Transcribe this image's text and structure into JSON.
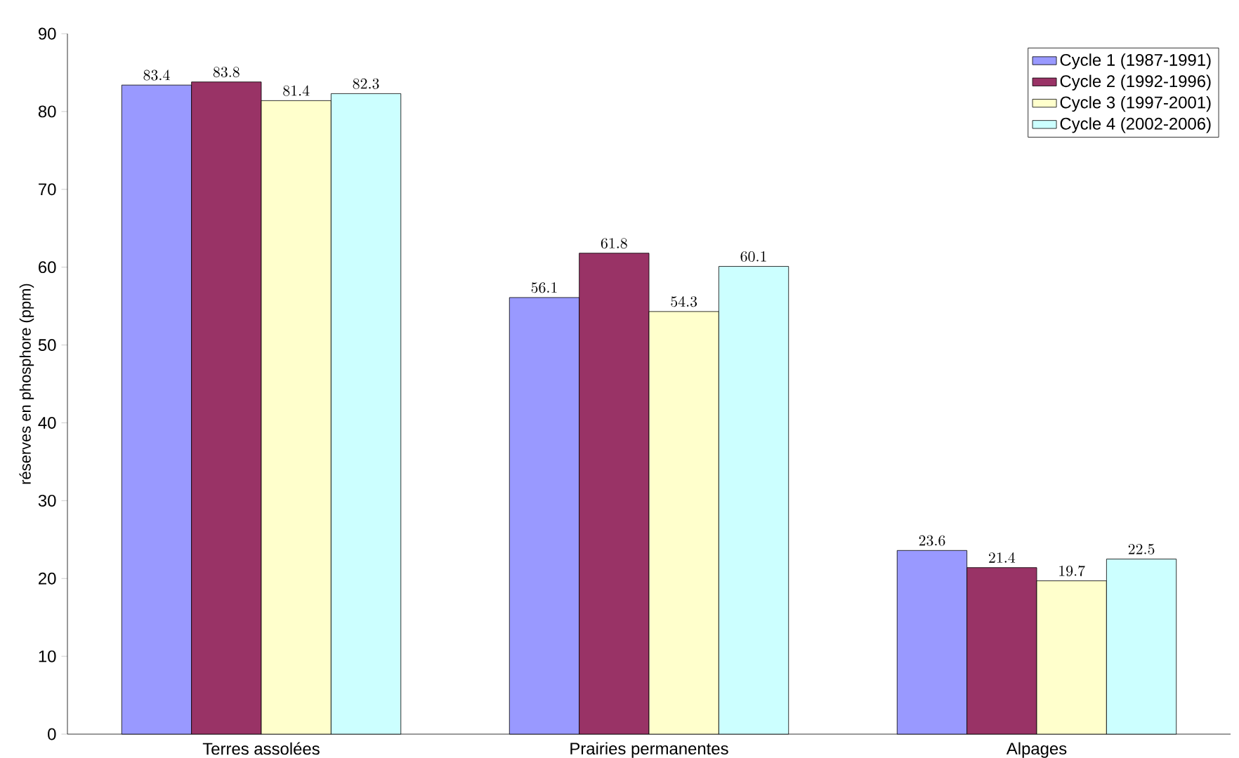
{
  "chart_data": {
    "type": "bar",
    "ylabel": "réserves en phosphore (ppm)",
    "categories": [
      "Terres assolées",
      "Prairies permanentes",
      "Alpages"
    ],
    "series": [
      {
        "name": "Cycle 1 (1987-1991)",
        "color": "#9999ff",
        "values": [
          83.4,
          56.1,
          23.6
        ]
      },
      {
        "name": "Cycle 2 (1992-1996)",
        "color": "#993366",
        "values": [
          83.8,
          61.8,
          21.4
        ]
      },
      {
        "name": "Cycle 3 (1997-2001)",
        "color": "#ffffcc",
        "values": [
          81.4,
          54.3,
          19.7
        ]
      },
      {
        "name": "Cycle 4 (2002-2006)",
        "color": "#ccffff",
        "values": [
          82.3,
          60.1,
          22.5
        ]
      }
    ],
    "ylim": [
      0,
      90
    ],
    "yticks": [
      0,
      10,
      20,
      30,
      40,
      50,
      60,
      70,
      80,
      90
    ],
    "data_labels": true,
    "legend": "top right",
    "grid": false
  }
}
